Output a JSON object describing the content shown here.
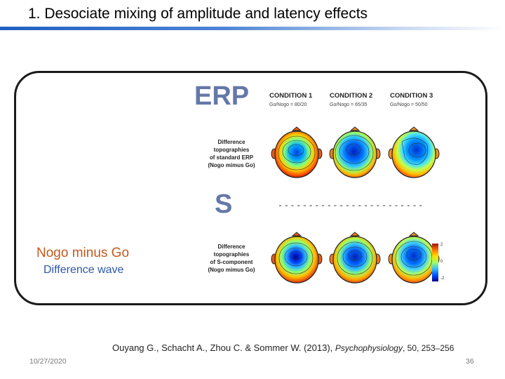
{
  "slide": {
    "title": "1.   Desociate mixing of amplitude and latency effects",
    "date": "10/27/2020",
    "page_number": "36"
  },
  "figure": {
    "erp_label": "ERP",
    "s_label": "S",
    "conditions": [
      {
        "label": "CONDITION 1",
        "ratio": "Go/Nogo = 80/20"
      },
      {
        "label": "CONDITION 2",
        "ratio": "Go/Nogo = 65/35"
      },
      {
        "label": "CONDITION 3",
        "ratio": "Go/Nogo = 50/50"
      }
    ],
    "row1_caption": [
      "Difference",
      "topographies",
      "of standard ERP",
      "(Nogo mimus Go)"
    ],
    "row2_caption": [
      "Difference",
      "topographies",
      "of S-component",
      "(Nogo mimus Go)"
    ],
    "separator": "------------------------",
    "colorbar_ticks": [
      "2",
      "0",
      "-2"
    ],
    "colors": {
      "erp_label": "#6478a8",
      "nogo_text": "#c05a1e",
      "diff_text": "#2e57a6"
    }
  },
  "annotation": {
    "nogo_minus_go": "Nogo minus Go",
    "difference_wave": "Difference wave"
  },
  "citation": {
    "authors": "Ouyang G., Schacht A., Zhou C. & Sommer W. (2013), ",
    "journal": "Psychophysiology",
    "rest": ", 50, 253–256"
  }
}
